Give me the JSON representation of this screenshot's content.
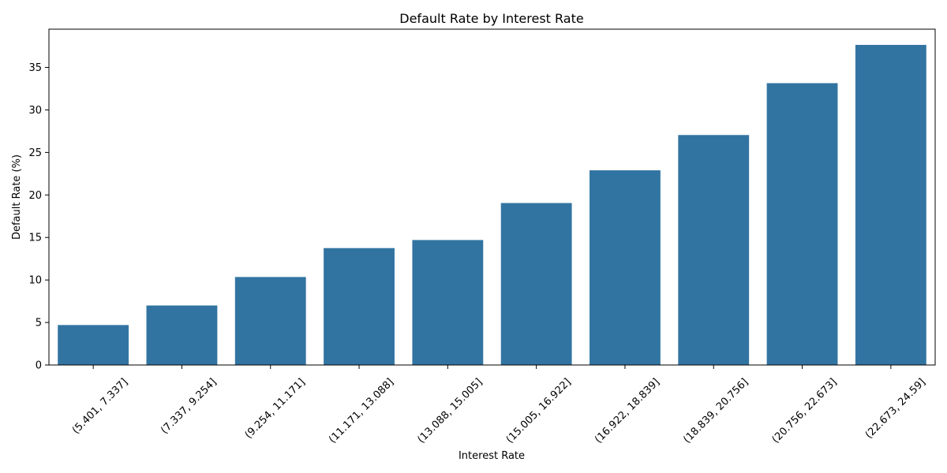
{
  "chart_data": {
    "type": "bar",
    "title": "Default Rate by Interest Rate",
    "xlabel": "Interest Rate",
    "ylabel": "Default Rate (%)",
    "categories": [
      "(5.401, 7.337]",
      "(7.337, 9.254]",
      "(9.254, 11.171]",
      "(11.171, 13.088]",
      "(13.088, 15.005]",
      "(15.005, 16.922]",
      "(16.922, 18.839]",
      "(18.839, 20.756]",
      "(20.756, 22.673]",
      "(22.673, 24.59]"
    ],
    "values": [
      4.7,
      7.0,
      10.35,
      13.75,
      14.7,
      19.05,
      22.9,
      27.05,
      33.15,
      37.65
    ],
    "ylim": [
      0,
      39.5
    ],
    "yticks": [
      "0",
      "5",
      "10",
      "15",
      "20",
      "25",
      "30",
      "35"
    ],
    "bar_color": "#3274a1",
    "grid": false,
    "legend": "none"
  }
}
